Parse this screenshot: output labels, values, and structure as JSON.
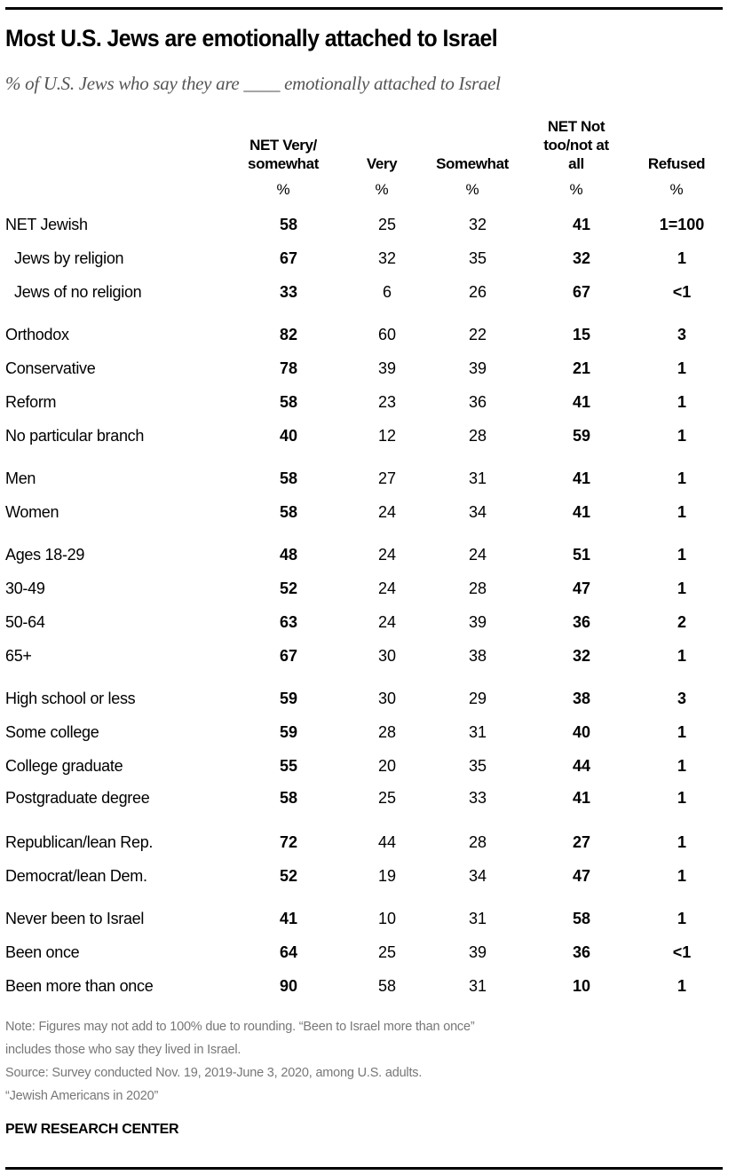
{
  "title": "Most U.S. Jews are emotionally attached to Israel",
  "subtitle": "% of U.S. Jews who say they are ____ emotionally attached to Israel",
  "columns": [
    {
      "label_lines": [
        "NET Very/",
        "somewhat"
      ],
      "unit": "%"
    },
    {
      "label_lines": [
        "Very"
      ],
      "unit": "%"
    },
    {
      "label_lines": [
        "Somewhat"
      ],
      "unit": "%"
    },
    {
      "label_lines": [
        "NET Not",
        "too/not at",
        "all"
      ],
      "unit": "%"
    },
    {
      "label_lines": [
        "Refused"
      ],
      "unit": "%"
    }
  ],
  "rows": [
    {
      "label": "NET Jewish",
      "values": [
        "58",
        "25",
        "32",
        "41",
        "1=100"
      ]
    },
    {
      "label": "Jews by religion",
      "values": [
        "67",
        "32",
        "35",
        "32",
        "1"
      ]
    },
    {
      "label": "Jews of no religion",
      "values": [
        "33",
        "6",
        "26",
        "67",
        "<1"
      ]
    },
    {
      "label": "Orthodox",
      "values": [
        "82",
        "60",
        "22",
        "15",
        "3"
      ]
    },
    {
      "label": "Conservative",
      "values": [
        "78",
        "39",
        "39",
        "21",
        "1"
      ]
    },
    {
      "label": "Reform",
      "values": [
        "58",
        "23",
        "36",
        "41",
        "1"
      ]
    },
    {
      "label": "No particular branch",
      "values": [
        "40",
        "12",
        "28",
        "59",
        "1"
      ]
    },
    {
      "label": "Men",
      "values": [
        "58",
        "27",
        "31",
        "41",
        "1"
      ]
    },
    {
      "label": "Women",
      "values": [
        "58",
        "24",
        "34",
        "41",
        "1"
      ]
    },
    {
      "label": "Ages 18-29",
      "values": [
        "48",
        "24",
        "24",
        "51",
        "1"
      ]
    },
    {
      "label": "30-49",
      "values": [
        "52",
        "24",
        "28",
        "47",
        "1"
      ]
    },
    {
      "label": "50-64",
      "values": [
        "63",
        "24",
        "39",
        "36",
        "2"
      ]
    },
    {
      "label": "65+",
      "values": [
        "67",
        "30",
        "38",
        "32",
        "1"
      ]
    },
    {
      "label": "High school or less",
      "values": [
        "59",
        "30",
        "29",
        "38",
        "3"
      ]
    },
    {
      "label": "Some college",
      "values": [
        "59",
        "28",
        "31",
        "40",
        "1"
      ]
    },
    {
      "label": "College graduate",
      "values": [
        "55",
        "20",
        "35",
        "44",
        "1"
      ]
    },
    {
      "label": "Postgraduate degree",
      "values": [
        "58",
        "25",
        "33",
        "41",
        "1"
      ]
    },
    {
      "label": "Republican/lean Rep.",
      "values": [
        "72",
        "44",
        "28",
        "27",
        "1"
      ]
    },
    {
      "label": "Democrat/lean Dem.",
      "values": [
        "52",
        "19",
        "34",
        "47",
        "1"
      ]
    },
    {
      "label": "Never been to Israel",
      "values": [
        "41",
        "10",
        "31",
        "58",
        "1"
      ]
    },
    {
      "label": "Been once",
      "values": [
        "64",
        "25",
        "39",
        "36",
        "<1"
      ]
    },
    {
      "label": "Been more than once",
      "values": [
        "90",
        "58",
        "31",
        "10",
        "1"
      ]
    }
  ],
  "notes": [
    "Note: Figures may not add to 100% due to rounding. “Been to Israel more than once”",
    "includes those who say they lived in Israel.",
    "Source: Survey conducted Nov. 19, 2019-June 3, 2020, among U.S. adults.",
    "“Jewish Americans in 2020”"
  ],
  "brand": "PEW RESEARCH CENTER",
  "chart_data": {
    "type": "table",
    "title": "Most U.S. Jews are emotionally attached to Israel",
    "subtitle": "% of U.S. Jews who say they are ____ emotionally attached to Israel",
    "columns": [
      "NET Very/somewhat",
      "Very",
      "Somewhat",
      "NET Not too/not at all",
      "Refused"
    ],
    "categories": [
      "NET Jewish",
      "Jews by religion",
      "Jews of no religion",
      "Orthodox",
      "Conservative",
      "Reform",
      "No particular branch",
      "Men",
      "Women",
      "Ages 18-29",
      "30-49",
      "50-64",
      "65+",
      "High school or less",
      "Some college",
      "College graduate",
      "Postgraduate degree",
      "Republican/lean Rep.",
      "Democrat/lean Dem.",
      "Never been to Israel",
      "Been once",
      "Been more than once"
    ],
    "series": [
      {
        "name": "NET Very/somewhat",
        "values": [
          58,
          67,
          33,
          82,
          78,
          58,
          40,
          58,
          58,
          48,
          52,
          63,
          67,
          59,
          59,
          55,
          58,
          72,
          52,
          41,
          64,
          90
        ]
      },
      {
        "name": "Very",
        "values": [
          25,
          32,
          6,
          60,
          39,
          23,
          12,
          27,
          24,
          24,
          24,
          24,
          30,
          30,
          28,
          20,
          25,
          44,
          19,
          10,
          25,
          58
        ]
      },
      {
        "name": "Somewhat",
        "values": [
          32,
          35,
          26,
          22,
          39,
          36,
          28,
          31,
          34,
          24,
          28,
          39,
          38,
          29,
          31,
          35,
          33,
          28,
          34,
          31,
          39,
          31
        ]
      },
      {
        "name": "NET Not too/not at all",
        "values": [
          41,
          32,
          67,
          15,
          21,
          41,
          59,
          41,
          41,
          51,
          47,
          36,
          32,
          38,
          40,
          44,
          41,
          27,
          47,
          58,
          36,
          10
        ]
      },
      {
        "name": "Refused",
        "values": [
          "1=100",
          "1",
          "<1",
          "3",
          "1",
          "1",
          "1",
          "1",
          "1",
          "1",
          "1",
          "2",
          "1",
          "3",
          "1",
          "1",
          "1",
          "1",
          "1",
          "1",
          "<1",
          "1"
        ]
      }
    ]
  }
}
